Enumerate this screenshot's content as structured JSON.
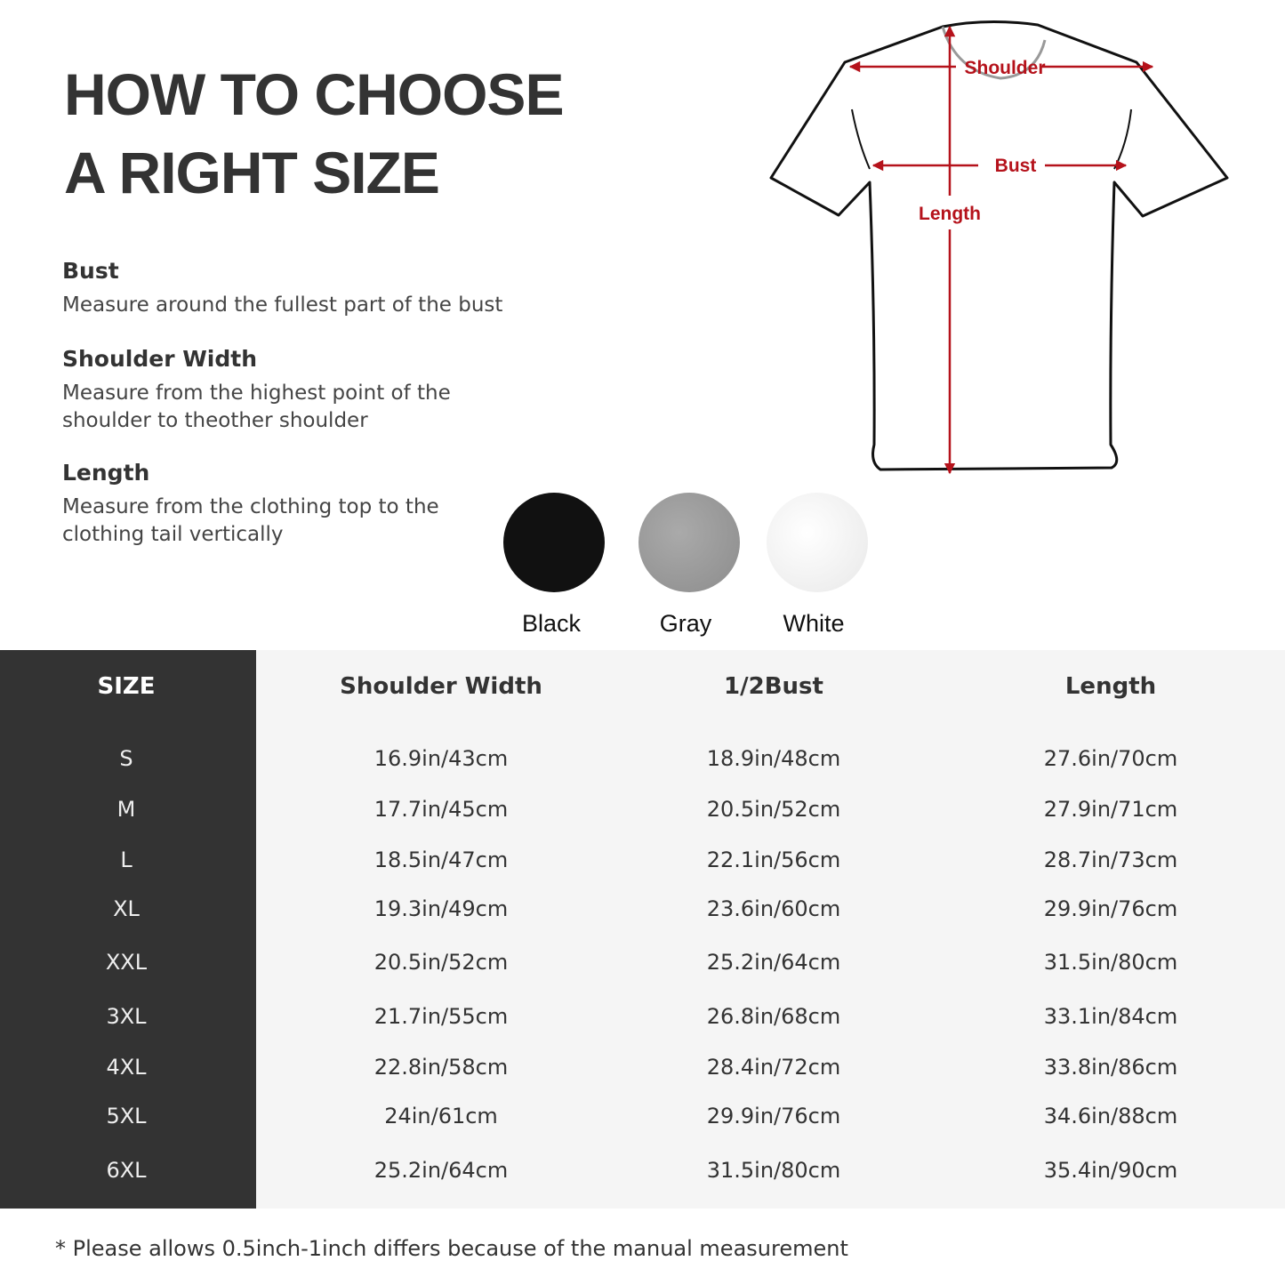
{
  "title_line1": "HOW TO CHOOSE",
  "title_line2": "A RIGHT SIZE",
  "sections": [
    {
      "heading": "Bust",
      "text_lines": [
        "Measure around the fullest part of the bust"
      ]
    },
    {
      "heading": "Shoulder Width",
      "text_lines": [
        "Measure from the highest point of the",
        "shoulder to theother shoulder"
      ]
    },
    {
      "heading": "Length",
      "text_lines": [
        "Measure from the clothing top to the",
        "clothing tail vertically"
      ]
    }
  ],
  "diagram": {
    "shoulder_label": "Shoulder",
    "bust_label": "Bust",
    "length_label": "Length",
    "arrow_color": "#b5121b"
  },
  "colors": [
    {
      "name": "Black",
      "hex": "#111111"
    },
    {
      "name": "Gray",
      "hex": "#9a9a9a"
    },
    {
      "name": "White",
      "hex": "#f3f3f3"
    }
  ],
  "table": {
    "headers": [
      "SIZE",
      "Shoulder Width",
      "1/2Bust",
      "Length"
    ],
    "rows": [
      [
        "S",
        "16.9in/43cm",
        "18.9in/48cm",
        "27.6in/70cm"
      ],
      [
        "M",
        "17.7in/45cm",
        "20.5in/52cm",
        "27.9in/71cm"
      ],
      [
        "L",
        "18.5in/47cm",
        "22.1in/56cm",
        "28.7in/73cm"
      ],
      [
        "XL",
        "19.3in/49cm",
        "23.6in/60cm",
        "29.9in/76cm"
      ],
      [
        "XXL",
        "20.5in/52cm",
        "25.2in/64cm",
        "31.5in/80cm"
      ],
      [
        "3XL",
        "21.7in/55cm",
        "26.8in/68cm",
        "33.1in/84cm"
      ],
      [
        "4XL",
        "22.8in/58cm",
        "28.4in/72cm",
        "33.8in/86cm"
      ],
      [
        "5XL",
        "24in/61cm",
        "29.9in/76cm",
        "34.6in/88cm"
      ],
      [
        "6XL",
        "25.2in/64cm",
        "31.5in/80cm",
        "35.4in/90cm"
      ]
    ]
  },
  "note": "* Please allows 0.5inch-1inch differs because of the  manual measurement"
}
